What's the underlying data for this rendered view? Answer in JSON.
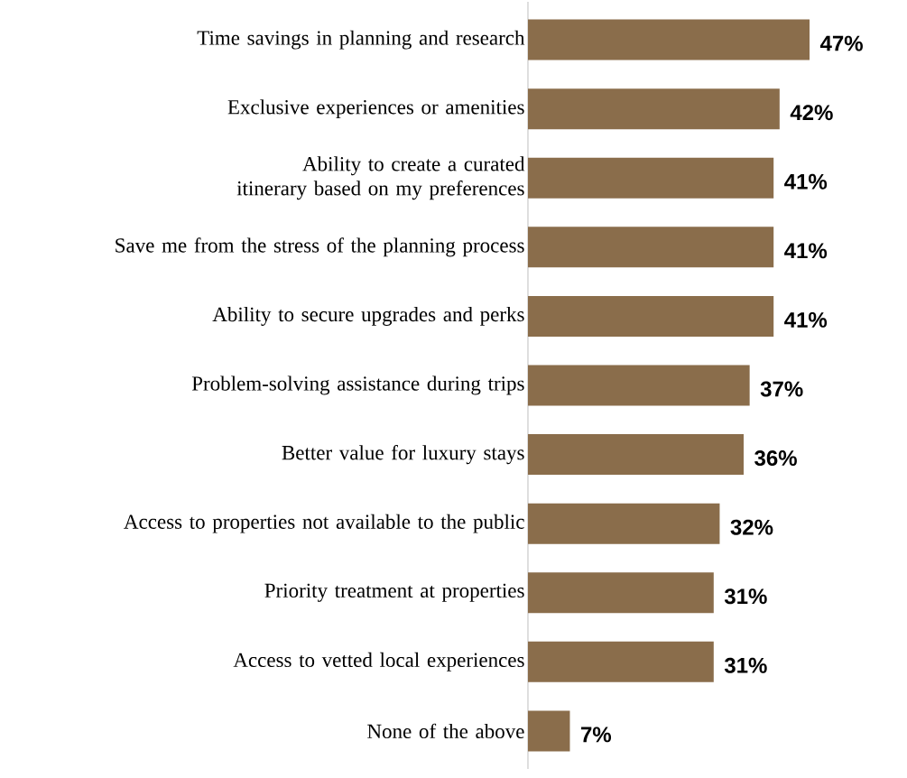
{
  "chart_data": {
    "type": "bar",
    "orientation": "horizontal",
    "color": "#8a6d4b",
    "categories": [
      "Time savings in planning and research",
      "Exclusive experiences or amenities",
      "Ability to create a curated itinerary based on my preferences",
      "Save me from the stress of the planning process",
      "Ability to secure upgrades and perks",
      "Problem-solving assistance during trips",
      "Better value for luxury stays",
      "Access to properties not available to the public",
      "Priority treatment at properties",
      "Access to vetted local experiences",
      "None of the above"
    ],
    "values": [
      47,
      42,
      41,
      41,
      41,
      37,
      36,
      32,
      31,
      31,
      7
    ],
    "value_labels": [
      "47%",
      "42%",
      "41%",
      "41%",
      "41%",
      "37%",
      "36%",
      "32%",
      "31%",
      "31%",
      "7%"
    ],
    "tick_labels": "y"
  }
}
